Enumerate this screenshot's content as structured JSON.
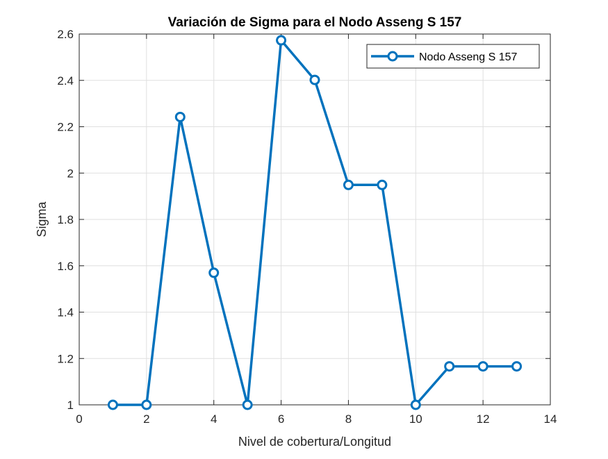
{
  "chart_data": {
    "type": "line",
    "title": "Variación de Sigma para el Nodo Asseng S 157",
    "xlabel": "Nivel de cobertura/Longitud",
    "ylabel": "Sigma",
    "xlim": [
      0,
      14
    ],
    "ylim": [
      1,
      2.6
    ],
    "xticks": [
      0,
      2,
      4,
      6,
      8,
      10,
      12,
      14
    ],
    "xtick_labels": [
      "0",
      "2",
      "4",
      "6",
      "8",
      "10",
      "12",
      "14"
    ],
    "yticks": [
      1,
      1.2,
      1.4,
      1.6,
      1.8,
      2,
      2.2,
      2.4,
      2.6
    ],
    "ytick_labels": [
      "1",
      "1.2",
      "1.4",
      "1.6",
      "1.8",
      "2",
      "2.2",
      "2.4",
      "2.6"
    ],
    "grid": true,
    "legend_position": "top-right",
    "series": [
      {
        "name": "Nodo Asseng S 157",
        "color": "#0072BD",
        "marker": "circle",
        "x": [
          1,
          2,
          3,
          4,
          5,
          6,
          7,
          8,
          9,
          10,
          11,
          12,
          13
        ],
        "y": [
          1.0,
          1.0,
          2.242,
          1.57,
          1.0,
          2.573,
          2.402,
          1.949,
          1.949,
          1.0,
          1.166,
          1.166,
          1.166
        ]
      }
    ]
  }
}
